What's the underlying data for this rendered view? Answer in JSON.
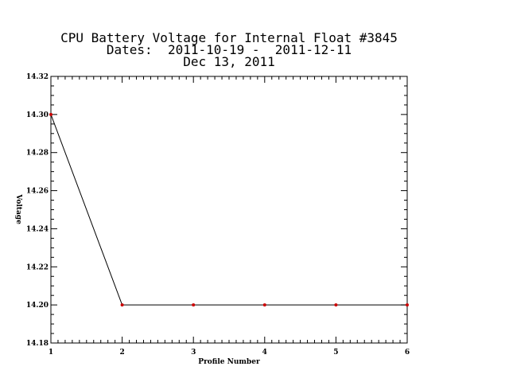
{
  "chart_data": {
    "type": "line",
    "title_lines": [
      "CPU Battery Voltage for Internal Float #3845",
      "Dates:  2011-10-19 -  2011-12-11",
      "Dec 13, 2011"
    ],
    "xlabel": "Profile Number",
    "ylabel": "Voltage",
    "xlim": [
      1,
      6
    ],
    "ylim": [
      14.18,
      14.32
    ],
    "x_ticks": [
      "1",
      "2",
      "3",
      "4",
      "5",
      "6"
    ],
    "y_ticks": [
      "14.18",
      "14.20",
      "14.22",
      "14.24",
      "14.26",
      "14.28",
      "14.30",
      "14.32"
    ],
    "x": [
      1,
      2,
      3,
      4,
      5,
      6
    ],
    "y": [
      14.3,
      14.2,
      14.2,
      14.2,
      14.2,
      14.2
    ],
    "line_color": "#000000",
    "marker_color": "#cc0000",
    "grid": false
  }
}
